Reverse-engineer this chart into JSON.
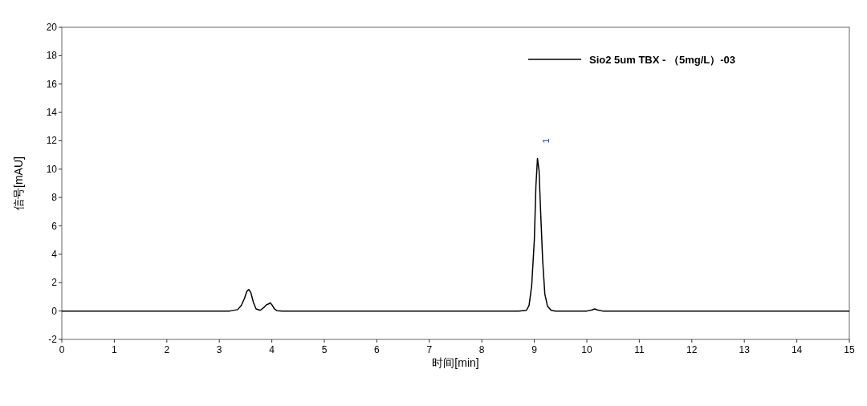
{
  "chart_data": {
    "type": "line",
    "xlabel": "时间[min]",
    "ylabel": "信号[mAU]",
    "xlim": [
      0,
      15
    ],
    "ylim": [
      -2,
      20
    ],
    "xticks": [
      0,
      1,
      2,
      3,
      4,
      5,
      6,
      7,
      8,
      9,
      10,
      11,
      12,
      13,
      14,
      15
    ],
    "yticks": [
      -2,
      0,
      2,
      4,
      6,
      8,
      10,
      12,
      14,
      16,
      18,
      20
    ],
    "legend": "top right",
    "grid": false,
    "annotations": [
      {
        "text": "1",
        "x": 9.06,
        "y": 10.76
      }
    ],
    "series": [
      {
        "name": "Sio2 5um TBX - （5mg/L）-03",
        "color": "#000000",
        "x": [
          0,
          3.2,
          3.35,
          3.42,
          3.48,
          3.52,
          3.56,
          3.6,
          3.65,
          3.7,
          3.78,
          3.85,
          3.9,
          3.94,
          3.97,
          4.0,
          4.05,
          4.1,
          4.2,
          4.5,
          5.0,
          6.0,
          6.55,
          8.7,
          8.85,
          8.9,
          8.95,
          9.0,
          9.03,
          9.06,
          9.09,
          9.12,
          9.16,
          9.2,
          9.25,
          9.32,
          9.4,
          10.0,
          10.1,
          10.15,
          10.2,
          10.3,
          15
        ],
        "values": [
          0,
          0,
          0.1,
          0.4,
          0.9,
          1.35,
          1.52,
          1.3,
          0.6,
          0.15,
          0.05,
          0.25,
          0.45,
          0.5,
          0.58,
          0.45,
          0.15,
          0.02,
          0,
          0,
          0,
          0,
          0,
          0,
          0.05,
          0.4,
          1.8,
          5.0,
          8.8,
          10.76,
          9.9,
          7.0,
          3.5,
          1.2,
          0.35,
          0.05,
          0,
          0,
          0.08,
          0.15,
          0.08,
          0,
          0
        ]
      }
    ]
  }
}
